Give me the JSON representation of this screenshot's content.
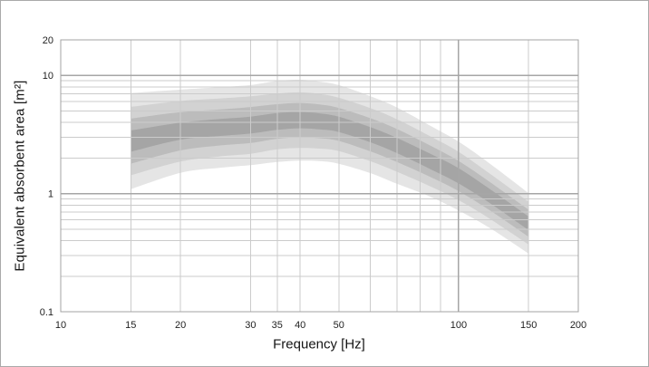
{
  "figure": {
    "x_axis_title": "Frequency [Hz]",
    "y_axis_title": "Equivalent absorbent area  [m²]"
  },
  "chart_data": {
    "type": "area",
    "title": "",
    "xlabel": "Frequency [Hz]",
    "ylabel": "Equivalent absorbent area [m²]",
    "x_scale": "log",
    "y_scale": "log",
    "xlim": [
      10,
      200
    ],
    "ylim": [
      0.1,
      20
    ],
    "grid": "on",
    "legend": "none",
    "x_tick_labels": [
      "10",
      "15",
      "20",
      "30",
      "35",
      "40",
      "50",
      "100",
      "150",
      "200"
    ],
    "y_tick_labels": [
      "0.1",
      "1",
      "10",
      "20"
    ],
    "x_minor_gridlines": [
      15,
      20,
      30,
      35,
      40,
      50,
      60,
      70,
      80,
      90,
      150
    ],
    "x_major_gridlines": [
      100
    ],
    "y_minor_gridlines": [
      0.2,
      0.3,
      0.4,
      0.5,
      0.6,
      0.7,
      0.8,
      0.9,
      2,
      3,
      4,
      5,
      6,
      7,
      8,
      9
    ],
    "y_major_gridlines": [
      1,
      10
    ],
    "frequencies": [
      15,
      20,
      25,
      30,
      35,
      40,
      45,
      50,
      60,
      70,
      85,
      100,
      120,
      150
    ],
    "median": [
      2.78,
      3.37,
      3.62,
      3.8,
      4.08,
      4.18,
      4.08,
      3.85,
      3.15,
      2.55,
      1.87,
      1.41,
      0.95,
      0.56
    ],
    "bands": [
      {
        "name": "outermost-band",
        "color": "#e5e5e5",
        "upper": [
          7.09,
          7.58,
          7.96,
          8.28,
          8.98,
          9.2,
          8.85,
          8.28,
          6.68,
          5.36,
          3.74,
          2.75,
          1.79,
          1.01
        ],
        "lower": [
          1.09,
          1.5,
          1.65,
          1.74,
          1.85,
          1.9,
          1.88,
          1.79,
          1.49,
          1.21,
          0.94,
          0.72,
          0.51,
          0.31
        ]
      },
      {
        "name": "outer-band",
        "color": "#d2d2d2",
        "upper": [
          5.42,
          6.07,
          6.37,
          6.65,
          7.02,
          7.19,
          6.94,
          6.47,
          5.29,
          4.26,
          3.05,
          2.26,
          1.47,
          0.85
        ],
        "lower": [
          1.43,
          1.87,
          2.06,
          2.17,
          2.37,
          2.43,
          2.4,
          2.29,
          1.88,
          1.53,
          1.15,
          0.88,
          0.61,
          0.37
        ]
      },
      {
        "name": "mid-band",
        "color": "#bcbcbc",
        "upper": [
          4.31,
          4.89,
          5.14,
          5.4,
          5.71,
          5.85,
          5.67,
          5.31,
          4.35,
          3.52,
          2.54,
          1.89,
          1.25,
          0.73
        ],
        "lower": [
          1.79,
          2.32,
          2.55,
          2.68,
          2.91,
          2.99,
          2.94,
          2.79,
          2.28,
          1.85,
          1.38,
          1.05,
          0.72,
          0.43
        ]
      },
      {
        "name": "inner-band",
        "color": "#a5a5a5",
        "upper": [
          3.42,
          3.98,
          4.27,
          4.48,
          4.81,
          4.89,
          4.77,
          4.47,
          3.65,
          2.96,
          2.17,
          1.64,
          1.09,
          0.64
        ],
        "lower": [
          2.26,
          2.86,
          3.07,
          3.22,
          3.46,
          3.57,
          3.49,
          3.32,
          2.72,
          2.2,
          1.61,
          1.22,
          0.83,
          0.49
        ]
      }
    ],
    "colors": {
      "minor_gridline": "#cbcbcb",
      "major_gridline": "#a6a6a6",
      "plot_border": "#a3a3a3",
      "text": "#1f1f1f",
      "background": "#ffffff"
    }
  }
}
